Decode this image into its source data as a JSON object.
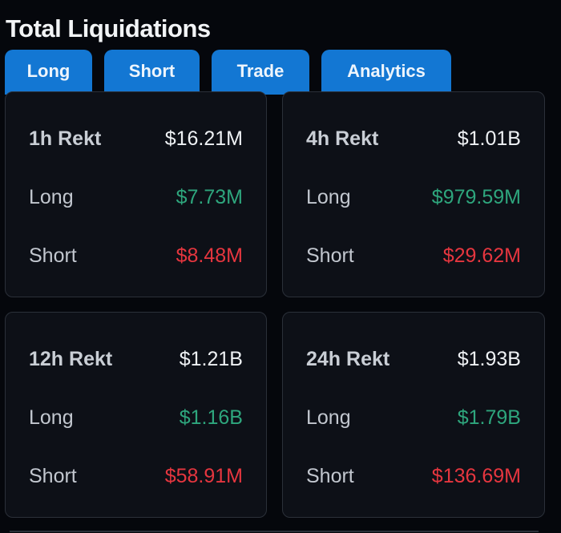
{
  "header": {
    "title": "Total Liquidations"
  },
  "tabs": [
    {
      "label": "Long"
    },
    {
      "label": "Short"
    },
    {
      "label": "Trade"
    },
    {
      "label": "Analytics"
    }
  ],
  "colors": {
    "accent": "#1377d3",
    "background": "#05070c",
    "card": "#0d1017",
    "long": "#2ea67d",
    "short": "#e6363f"
  },
  "cards": [
    {
      "period_label": "1h Rekt",
      "total": "$16.21M",
      "long_label": "Long",
      "long_value": "$7.73M",
      "short_label": "Short",
      "short_value": "$8.48M"
    },
    {
      "period_label": "4h Rekt",
      "total": "$1.01B",
      "long_label": "Long",
      "long_value": "$979.59M",
      "short_label": "Short",
      "short_value": "$29.62M"
    },
    {
      "period_label": "12h Rekt",
      "total": "$1.21B",
      "long_label": "Long",
      "long_value": "$1.16B",
      "short_label": "Short",
      "short_value": "$58.91M"
    },
    {
      "period_label": "24h Rekt",
      "total": "$1.93B",
      "long_label": "Long",
      "long_value": "$1.79B",
      "short_label": "Short",
      "short_value": "$136.69M"
    }
  ]
}
